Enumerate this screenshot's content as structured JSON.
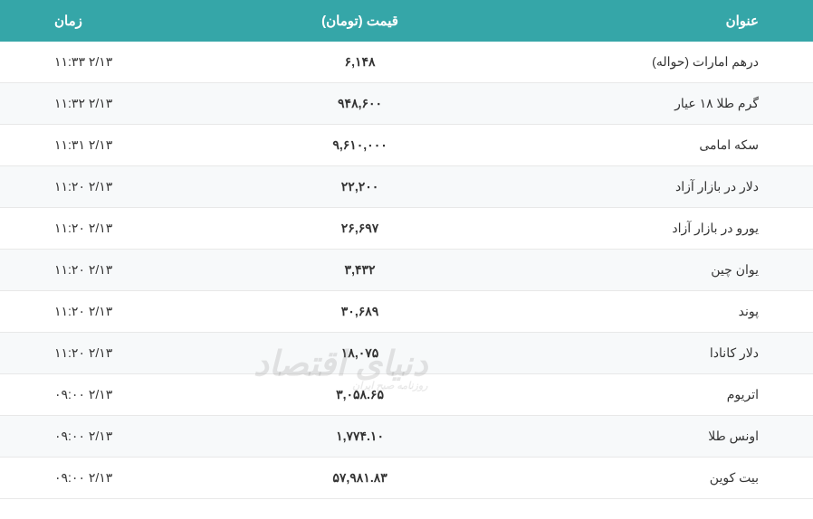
{
  "table": {
    "headers": {
      "title": "عنوان",
      "price": "قیمت (تومان)",
      "time": "زمان"
    },
    "rows": [
      {
        "title": "درهم امارات (حواله)",
        "price": "۶,۱۴۸",
        "time": "۲/۱۳ ۱۱:۳۳"
      },
      {
        "title": "گرم طلا ۱۸ عیار",
        "price": "۹۴۸,۶۰۰",
        "time": "۲/۱۳ ۱۱:۳۲"
      },
      {
        "title": "سکه امامی",
        "price": "۹,۶۱۰,۰۰۰",
        "time": "۲/۱۳ ۱۱:۳۱"
      },
      {
        "title": "دلار در بازار آزاد",
        "price": "۲۲,۲۰۰",
        "time": "۲/۱۳ ۱۱:۲۰"
      },
      {
        "title": "یورو در بازار آزاد",
        "price": "۲۶,۶۹۷",
        "time": "۲/۱۳ ۱۱:۲۰"
      },
      {
        "title": "یوان چین",
        "price": "۳,۴۳۲",
        "time": "۲/۱۳ ۱۱:۲۰"
      },
      {
        "title": "پوند",
        "price": "۳۰,۶۸۹",
        "time": "۲/۱۳ ۱۱:۲۰"
      },
      {
        "title": "دلار کانادا",
        "price": "۱۸,۰۷۵",
        "time": "۲/۱۳ ۱۱:۲۰"
      },
      {
        "title": "اتریوم",
        "price": "۳,۰۵۸.۶۵",
        "time": "۲/۱۳ ۰۹:۰۰"
      },
      {
        "title": "اونس طلا",
        "price": "۱,۷۷۴.۱۰",
        "time": "۲/۱۳ ۰۹:۰۰"
      },
      {
        "title": "بیت کوین",
        "price": "۵۷,۹۸۱.۸۳",
        "time": "۲/۱۳ ۰۹:۰۰"
      }
    ]
  },
  "styling": {
    "header_bg_color": "#35a6a8",
    "header_text_color": "#ffffff",
    "row_even_bg": "#f7f9fa",
    "row_odd_bg": "#ffffff",
    "border_color": "#e8e8e8",
    "text_color": "#333333",
    "header_font_size": 15,
    "cell_font_size": 14
  },
  "watermark": {
    "main": "دنیای اقتصاد",
    "sub": "روزنامه صبح ایران"
  }
}
